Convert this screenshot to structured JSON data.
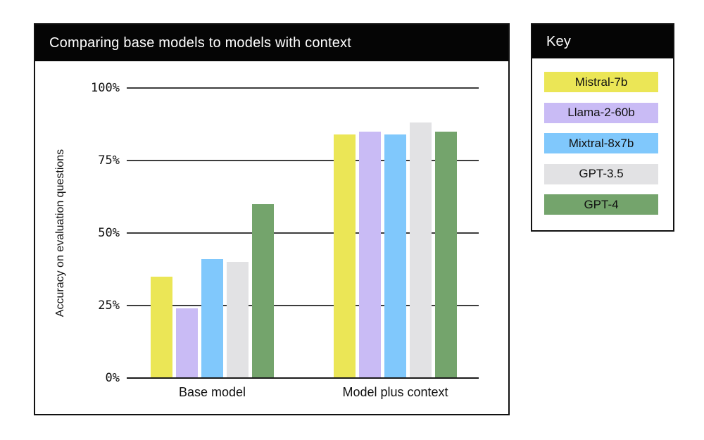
{
  "chart_panel": {
    "title": "Comparing base models to models with context"
  },
  "legend": {
    "title": "Key"
  },
  "chart_data": {
    "type": "bar",
    "title": "Comparing base models to models with context",
    "categories": [
      "Base model",
      "Model plus context"
    ],
    "series": [
      {
        "name": "Mistral-7b",
        "color": "#ebe656",
        "values": [
          35,
          84
        ]
      },
      {
        "name": "Llama-2-60b",
        "color": "#c9bbf5",
        "values": [
          24,
          85
        ]
      },
      {
        "name": "Mixtral-8x7b",
        "color": "#80c8fc",
        "values": [
          41,
          84
        ]
      },
      {
        "name": "GPT-3.5",
        "color": "#e2e2e4",
        "values": [
          40,
          88
        ]
      },
      {
        "name": "GPT-4",
        "color": "#74a46c",
        "values": [
          60,
          85
        ]
      }
    ],
    "xlabel": "",
    "ylabel": "Accuracy on evaluation questions",
    "ylim": [
      0,
      100
    ],
    "yticks": [
      {
        "label": "0%",
        "value": 0
      },
      {
        "label": "25%",
        "value": 25
      },
      {
        "label": "50%",
        "value": 50
      },
      {
        "label": "75%",
        "value": 75
      },
      {
        "label": "100%",
        "value": 100
      }
    ],
    "grid": true,
    "legend_position": "right"
  }
}
